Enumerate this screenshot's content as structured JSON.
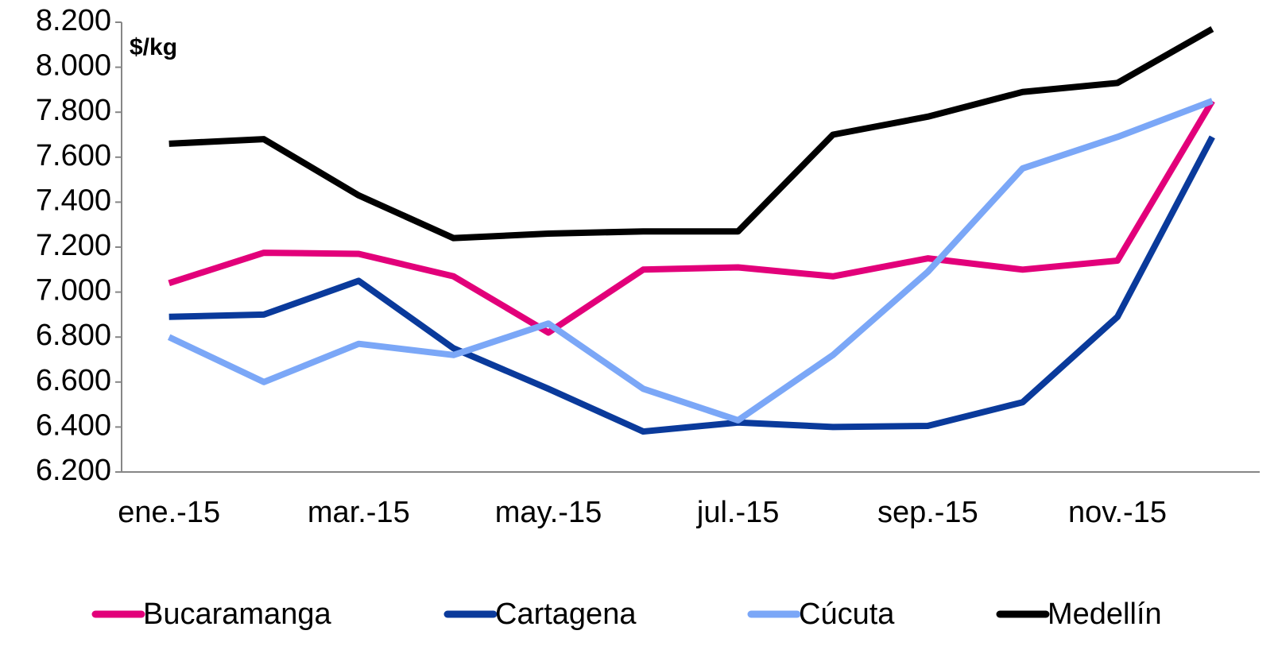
{
  "chart_data": {
    "type": "line",
    "y_unit_label": "$/kg",
    "categories": [
      "ene.-15",
      null,
      "mar.-15",
      null,
      "may.-15",
      null,
      "jul.-15",
      null,
      "sep.-15",
      null,
      "nov.-15",
      null
    ],
    "series": [
      {
        "name": "Bucaramanga",
        "color": "#e2007a",
        "values": [
          7040,
          7175,
          7170,
          7070,
          6820,
          7100,
          7110,
          7070,
          7150,
          7100,
          7140,
          7850
        ]
      },
      {
        "name": "Cartagena",
        "color": "#0a3a9b",
        "values": [
          6890,
          6900,
          7050,
          6750,
          6570,
          6380,
          6420,
          6400,
          6405,
          6510,
          6890,
          7690
        ]
      },
      {
        "name": "Cúcuta",
        "color": "#7ba7f7",
        "values": [
          6800,
          6600,
          6770,
          6720,
          6860,
          6570,
          6430,
          6720,
          7090,
          7550,
          7690,
          7850
        ]
      },
      {
        "name": "Medellín",
        "color": "#000000",
        "values": [
          7660,
          7680,
          7430,
          7240,
          7260,
          7270,
          7270,
          7700,
          7780,
          7890,
          7930,
          8170
        ]
      }
    ],
    "ylim": [
      6200,
      8200
    ],
    "yticks": [
      {
        "value": 6200,
        "label": "6.200"
      },
      {
        "value": 6400,
        "label": "6.400"
      },
      {
        "value": 6600,
        "label": "6.600"
      },
      {
        "value": 6800,
        "label": "6.800"
      },
      {
        "value": 7000,
        "label": "7.000"
      },
      {
        "value": 7200,
        "label": "7.200"
      },
      {
        "value": 7400,
        "label": "7.400"
      },
      {
        "value": 7600,
        "label": "7.600"
      },
      {
        "value": 7800,
        "label": "7.800"
      },
      {
        "value": 8000,
        "label": "8.000"
      },
      {
        "value": 8200,
        "label": "8.200"
      }
    ],
    "grid": false,
    "legend": "bottom"
  }
}
